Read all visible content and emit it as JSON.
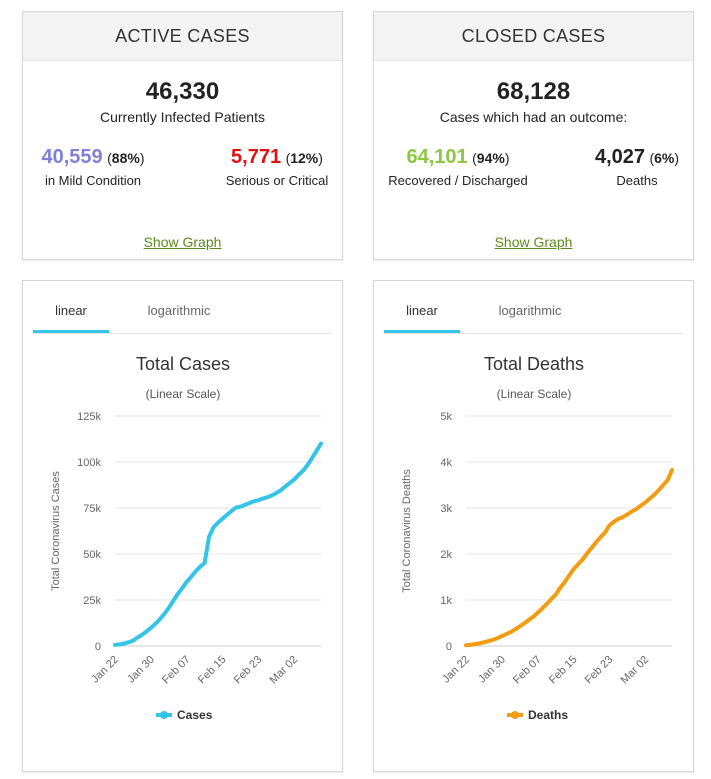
{
  "active": {
    "title": "ACTIVE CASES",
    "total": "46,330",
    "total_label": "Currently Infected Patients",
    "mild_value": "40,559",
    "mild_pct": "88%",
    "mild_label": "in Mild Condition",
    "serious_value": "5,771",
    "serious_pct": "12%",
    "serious_label": "Serious or Critical",
    "link": "Show Graph",
    "colors": {
      "mild": "#8080d8",
      "serious": "#e01010"
    }
  },
  "closed": {
    "title": "CLOSED CASES",
    "total": "68,128",
    "total_label": "Cases which had an outcome:",
    "recovered_value": "64,101",
    "recovered_pct": "94%",
    "recovered_label": "Recovered / Discharged",
    "deaths_value": "4,027",
    "deaths_pct": "6%",
    "deaths_label": "Deaths",
    "link": "Show Graph",
    "colors": {
      "recovered": "#8cc63f",
      "deaths": "#222222"
    }
  },
  "tabs": {
    "linear": "linear",
    "log": "logarithmic"
  },
  "chart_data": [
    {
      "type": "line",
      "title": "Total Cases",
      "subtitle": "(Linear Scale)",
      "ylabel": "Total Coronavirus Cases",
      "xlabel": "",
      "ylim": [
        0,
        125000
      ],
      "yticks": [
        0,
        25000,
        50000,
        75000,
        100000,
        125000
      ],
      "ytick_labels": [
        "0",
        "25k",
        "50k",
        "75k",
        "100k",
        "125k"
      ],
      "xtick_labels": [
        "Jan 22",
        "Jan 30",
        "Feb 07",
        "Feb 15",
        "Feb 23",
        "Mar 02"
      ],
      "x": [
        "Jan 22",
        "Jan 23",
        "Jan 24",
        "Jan 25",
        "Jan 26",
        "Jan 27",
        "Jan 28",
        "Jan 29",
        "Jan 30",
        "Jan 31",
        "Feb 01",
        "Feb 02",
        "Feb 03",
        "Feb 04",
        "Feb 05",
        "Feb 06",
        "Feb 07",
        "Feb 08",
        "Feb 09",
        "Feb 10",
        "Feb 11",
        "Feb 12",
        "Feb 13",
        "Feb 14",
        "Feb 15",
        "Feb 16",
        "Feb 17",
        "Feb 18",
        "Feb 19",
        "Feb 20",
        "Feb 21",
        "Feb 22",
        "Feb 23",
        "Feb 24",
        "Feb 25",
        "Feb 26",
        "Feb 27",
        "Feb 28",
        "Feb 29",
        "Mar 01",
        "Mar 02",
        "Mar 03",
        "Mar 04",
        "Mar 05",
        "Mar 06",
        "Mar 07",
        "Mar 08"
      ],
      "grid": true,
      "legend": "bottom",
      "series": [
        {
          "name": "Cases",
          "color": "#33c4e8",
          "values": [
            580,
            845,
            1317,
            2015,
            2800,
            4581,
            6058,
            7813,
            9823,
            11950,
            14553,
            17391,
            20630,
            24545,
            28266,
            31439,
            34876,
            37552,
            40553,
            43099,
            45134,
            59287,
            64438,
            67100,
            69197,
            71329,
            73332,
            75184,
            75700,
            76677,
            77673,
            78651,
            79205,
            80087,
            80828,
            81820,
            83112,
            84615,
            86604,
            88585,
            90443,
            93016,
            95314,
            98425,
            102050,
            106099,
            109991
          ]
        }
      ]
    },
    {
      "type": "line",
      "title": "Total Deaths",
      "subtitle": "(Linear Scale)",
      "ylabel": "Total Coronavirus Deaths",
      "xlabel": "",
      "ylim": [
        0,
        5000
      ],
      "yticks": [
        0,
        1000,
        2000,
        3000,
        4000,
        5000
      ],
      "ytick_labels": [
        "0",
        "1k",
        "2k",
        "3k",
        "4k",
        "5k"
      ],
      "xtick_labels": [
        "Jan 22",
        "Jan 30",
        "Feb 07",
        "Feb 15",
        "Feb 23",
        "Mar 02"
      ],
      "x": [
        "Jan 22",
        "Jan 23",
        "Jan 24",
        "Jan 25",
        "Jan 26",
        "Jan 27",
        "Jan 28",
        "Jan 29",
        "Jan 30",
        "Jan 31",
        "Feb 01",
        "Feb 02",
        "Feb 03",
        "Feb 04",
        "Feb 05",
        "Feb 06",
        "Feb 07",
        "Feb 08",
        "Feb 09",
        "Feb 10",
        "Feb 11",
        "Feb 12",
        "Feb 13",
        "Feb 14",
        "Feb 15",
        "Feb 16",
        "Feb 17",
        "Feb 18",
        "Feb 19",
        "Feb 20",
        "Feb 21",
        "Feb 22",
        "Feb 23",
        "Feb 24",
        "Feb 25",
        "Feb 26",
        "Feb 27",
        "Feb 28",
        "Feb 29",
        "Mar 01",
        "Mar 02",
        "Mar 03",
        "Mar 04",
        "Mar 05",
        "Mar 06",
        "Mar 07",
        "Mar 08"
      ],
      "grid": true,
      "legend": "bottom",
      "series": [
        {
          "name": "Deaths",
          "color": "#f39c12",
          "values": [
            17,
            25,
            41,
            56,
            80,
            106,
            132,
            170,
            213,
            259,
            304,
            362,
            426,
            492,
            565,
            638,
            724,
            813,
            910,
            1018,
            1115,
            1261,
            1383,
            1526,
            1669,
            1775,
            1873,
            2009,
            2126,
            2247,
            2360,
            2460,
            2618,
            2699,
            2763,
            2800,
            2858,
            2923,
            2977,
            3050,
            3117,
            3202,
            3285,
            3387,
            3494,
            3599,
            3827
          ]
        }
      ]
    }
  ]
}
